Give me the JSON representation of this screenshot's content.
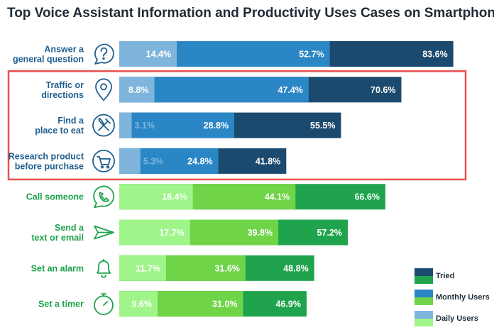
{
  "chart_data": {
    "type": "bar",
    "orientation": "horizontal",
    "stacked": false,
    "title": "Top Voice Assistant Information and Productivity Uses Cases on Smartphones",
    "xlim": [
      0,
      100
    ],
    "unit": "%",
    "categories": [
      {
        "label_lines": [
          "Answer a",
          "general question"
        ],
        "group": "information",
        "icon": "question-bubble-icon"
      },
      {
        "label_lines": [
          "Traffic or",
          "directions"
        ],
        "group": "information",
        "icon": "map-pin-icon"
      },
      {
        "label_lines": [
          "Find a",
          "place to eat"
        ],
        "group": "information",
        "icon": "fork-knife-icon"
      },
      {
        "label_lines": [
          "Research product",
          "before purchase"
        ],
        "group": "information",
        "icon": "shopping-cart-icon"
      },
      {
        "label_lines": [
          "Call someone"
        ],
        "group": "productivity",
        "icon": "phone-icon"
      },
      {
        "label_lines": [
          "Send a",
          "text or email"
        ],
        "group": "productivity",
        "icon": "paper-plane-icon"
      },
      {
        "label_lines": [
          "Set an alarm"
        ],
        "group": "productivity",
        "icon": "bell-icon"
      },
      {
        "label_lines": [
          "Set a timer"
        ],
        "group": "productivity",
        "icon": "stopwatch-icon"
      }
    ],
    "series": [
      {
        "name": "Tried",
        "values": [
          83.6,
          70.6,
          55.5,
          41.8,
          66.6,
          57.2,
          48.8,
          46.9
        ],
        "labels": [
          "83.6%",
          "70.6%",
          "55.5%",
          "41.8%",
          "66.6%",
          "57.2%",
          "48.8%",
          "46.9%"
        ]
      },
      {
        "name": "Monthly Users",
        "values": [
          52.7,
          47.4,
          28.8,
          24.8,
          44.1,
          39.8,
          31.6,
          31.0
        ],
        "labels": [
          "52.7%",
          "47.4%",
          "28.8%",
          "24.8%",
          "44.1%",
          "39.8%",
          "31.6%",
          "31.0%"
        ]
      },
      {
        "name": "Daily Users",
        "values": [
          14.4,
          8.8,
          3.1,
          5.3,
          18.4,
          17.7,
          11.7,
          9.6
        ],
        "labels": [
          "14.4%",
          "8.8%",
          "3.1%",
          "5.3%",
          "18.4%",
          "17.7%",
          "11.7%",
          "9.6%"
        ]
      }
    ],
    "colors": {
      "information": [
        "#1b4a6e",
        "#2a86c5",
        "#7fb5dc"
      ],
      "productivity": [
        "#1fa44d",
        "#6fd448",
        "#9ff58a"
      ],
      "information_label": "#1f5f8f",
      "productivity_label": "#1ea34c",
      "highlight_box": "#e8504f"
    },
    "highlight": {
      "from_category": 1,
      "to_category": 3
    },
    "legend": {
      "position": "bottom-right",
      "items": [
        {
          "name": "Tried",
          "colors": [
            "#1b4a6e",
            "#1fa44d"
          ]
        },
        {
          "name": "Monthly Users",
          "colors": [
            "#2a86c5",
            "#6fd448"
          ]
        },
        {
          "name": "Daily Users",
          "colors": [
            "#7fb5dc",
            "#9ff58a"
          ]
        }
      ]
    },
    "grid": false
  }
}
